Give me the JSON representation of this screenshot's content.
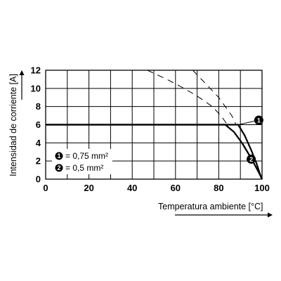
{
  "chart_data": {
    "type": "line",
    "xlabel": "Temperatura ambiente [°C]",
    "ylabel": "Intensidad de corriente [A]",
    "xlim": [
      0,
      100
    ],
    "ylim": [
      0,
      12
    ],
    "x_ticks": [
      "0",
      "20",
      "40",
      "60",
      "80",
      "100"
    ],
    "y_ticks": [
      "0",
      "2",
      "4",
      "6",
      "8",
      "10",
      "12"
    ],
    "x_grid_step": 10,
    "y_grid_step": 2,
    "grid": true,
    "legend_position": "bottom-left",
    "series": [
      {
        "marker": "1",
        "legend_value": "= 0,75 mm²",
        "style": "solid",
        "points": [
          [
            0,
            6
          ],
          [
            89,
            6
          ],
          [
            92,
            4.8
          ],
          [
            95,
            3.2
          ],
          [
            97.5,
            1.7
          ],
          [
            99,
            0.6
          ],
          [
            100,
            0
          ]
        ]
      },
      {
        "marker": "2",
        "legend_value": "= 0,5 mm²",
        "style": "solid",
        "points": [
          [
            0,
            6
          ],
          [
            83,
            6
          ],
          [
            87,
            5.2
          ],
          [
            91,
            3.9
          ],
          [
            94.5,
            2.5
          ],
          [
            97,
            1.4
          ],
          [
            99,
            0.5
          ],
          [
            100,
            0
          ]
        ]
      },
      {
        "style": "dashed",
        "points": [
          [
            47,
            12
          ],
          [
            56,
            11
          ],
          [
            64,
            10
          ],
          [
            71,
            9
          ],
          [
            77,
            8
          ],
          [
            81,
            7
          ],
          [
            84,
            6
          ]
        ]
      },
      {
        "style": "dashed",
        "points": [
          [
            68,
            12
          ],
          [
            72,
            11
          ],
          [
            76,
            10
          ],
          [
            80,
            9
          ],
          [
            83,
            8
          ],
          [
            86,
            7
          ],
          [
            88,
            6
          ]
        ]
      }
    ],
    "leaders": [
      {
        "marker": "1",
        "from": [
          98.5,
          6.5
        ],
        "to": [
          89,
          6
        ]
      },
      {
        "marker": "2",
        "from": [
          95,
          2.2
        ],
        "to": [
          90,
          4.2
        ]
      }
    ],
    "colors": {
      "line": "#000000",
      "grid": "#000000",
      "background": "#ffffff"
    }
  }
}
